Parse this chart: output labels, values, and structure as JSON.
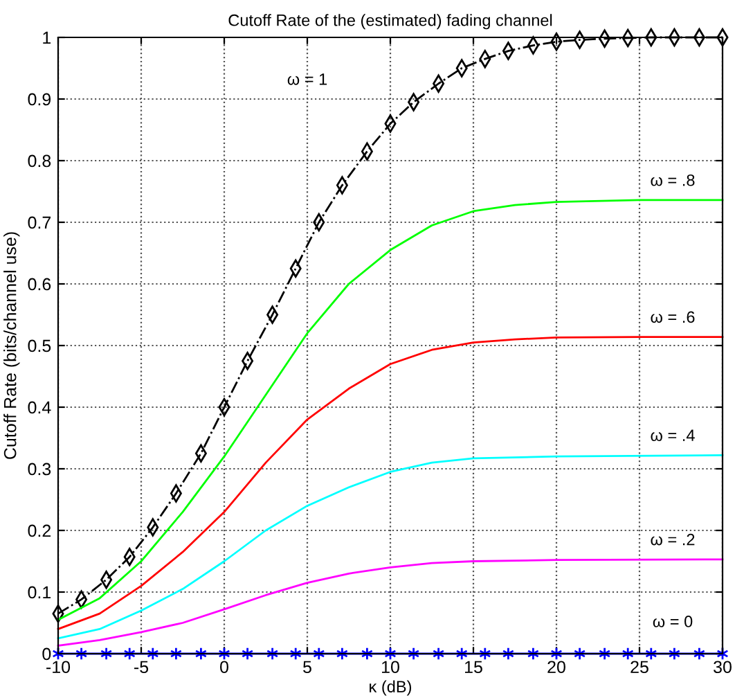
{
  "chart_data": {
    "type": "line",
    "title": "Cutoff Rate of the (estimated) fading channel",
    "xlabel": "κ (dB)",
    "ylabel": "Cutoff Rate (bits/channel use)",
    "xlim": [
      -10,
      30
    ],
    "xticks": [
      -10,
      -5,
      0,
      5,
      10,
      15,
      20,
      25,
      30
    ],
    "ylim": [
      0,
      1
    ],
    "yticks": [
      0,
      0.1,
      0.2,
      0.3,
      0.4,
      0.5,
      0.6,
      0.7,
      0.8,
      0.9,
      1
    ],
    "grid": true,
    "legend": false,
    "series": [
      {
        "color": "#000000",
        "marker": "diamond",
        "line_style": "dashed",
        "x": [
          -10,
          -8.6,
          -7.1,
          -5.7,
          -4.3,
          -2.9,
          -1.4,
          0,
          1.4,
          2.9,
          4.3,
          5.7,
          7.1,
          8.6,
          10,
          11.4,
          12.9,
          14.3,
          15.7,
          17.1,
          18.6,
          20,
          21.4,
          22.9,
          24.3,
          25.7,
          27.1,
          28.6,
          30
        ],
        "values": [
          0.065,
          0.088,
          0.12,
          0.157,
          0.205,
          0.26,
          0.325,
          0.4,
          0.475,
          0.55,
          0.625,
          0.7,
          0.76,
          0.815,
          0.86,
          0.895,
          0.925,
          0.95,
          0.965,
          0.978,
          0.987,
          0.993,
          0.996,
          0.998,
          0.999,
          1,
          1,
          1,
          1
        ]
      },
      {
        "color": "#00ff00",
        "marker": "none",
        "line_style": "solid",
        "x": [
          -10,
          -7.5,
          -5,
          -2.5,
          0,
          2.5,
          5,
          7.5,
          10,
          12.5,
          15,
          17.5,
          20,
          25,
          30
        ],
        "values": [
          0.055,
          0.09,
          0.15,
          0.23,
          0.32,
          0.42,
          0.52,
          0.6,
          0.655,
          0.695,
          0.718,
          0.728,
          0.733,
          0.736,
          0.736
        ]
      },
      {
        "color": "#ff0000",
        "marker": "none",
        "line_style": "solid",
        "x": [
          -10,
          -7.5,
          -5,
          -2.5,
          0,
          2.5,
          5,
          7.5,
          10,
          12.5,
          15,
          17.5,
          20,
          25,
          30
        ],
        "values": [
          0.04,
          0.065,
          0.11,
          0.165,
          0.23,
          0.31,
          0.38,
          0.43,
          0.47,
          0.493,
          0.505,
          0.51,
          0.513,
          0.514,
          0.514
        ]
      },
      {
        "color": "#00ffff",
        "marker": "none",
        "line_style": "solid",
        "x": [
          -10,
          -7.5,
          -5,
          -2.5,
          0,
          2.5,
          5,
          7.5,
          10,
          12.5,
          15,
          20,
          30
        ],
        "values": [
          0.025,
          0.04,
          0.07,
          0.105,
          0.15,
          0.2,
          0.24,
          0.27,
          0.295,
          0.31,
          0.317,
          0.32,
          0.322
        ]
      },
      {
        "color": "#ff00ff",
        "marker": "none",
        "line_style": "solid",
        "x": [
          -10,
          -7.5,
          -5,
          -2.5,
          0,
          2.5,
          5,
          7.5,
          10,
          12.5,
          15,
          20,
          30
        ],
        "values": [
          0.013,
          0.022,
          0.035,
          0.05,
          0.072,
          0.095,
          0.115,
          0.13,
          0.14,
          0.147,
          0.15,
          0.152,
          0.153
        ]
      },
      {
        "color": "#0000ff",
        "marker": "cross",
        "line_style": "solid",
        "x": [
          -10,
          -8.6,
          -7.1,
          -5.7,
          -4.3,
          -2.9,
          -1.4,
          0,
          1.4,
          2.9,
          4.3,
          5.7,
          7.1,
          8.6,
          10,
          11.4,
          12.9,
          14.3,
          15.7,
          17.1,
          18.6,
          20,
          21.4,
          22.9,
          24.3,
          25.7,
          27.1,
          28.6,
          30
        ],
        "values": [
          0,
          0,
          0,
          0,
          0,
          0,
          0,
          0,
          0,
          0,
          0,
          0,
          0,
          0,
          0,
          0,
          0,
          0,
          0,
          0,
          0,
          0,
          0,
          0,
          0,
          0,
          0,
          0,
          0
        ]
      }
    ],
    "annotations": [
      "ω = 1",
      "ω = .8",
      "ω = .6",
      "ω = .4",
      "ω = .2",
      "ω = 0"
    ]
  }
}
